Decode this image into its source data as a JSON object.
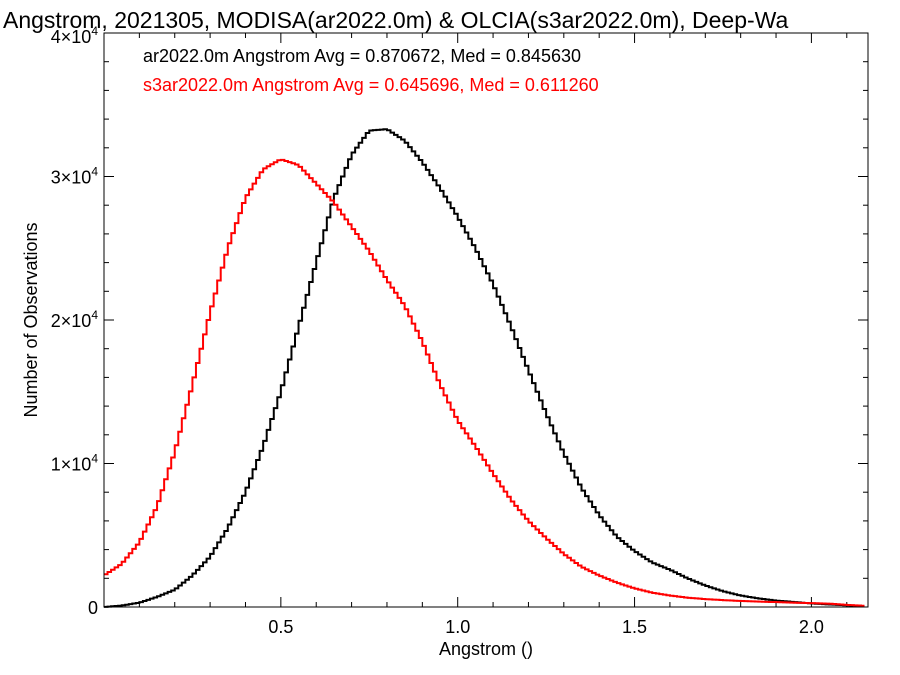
{
  "chart_data": {
    "type": "line",
    "step": true,
    "title": "Angstrom, 2021305, MODISA(ar2022.0m) & OLCIA(s3ar2022.0m), Deep-Wa",
    "xlabel": "Angstrom ()",
    "ylabel": "Number of Observations",
    "xlim": [
      0.0,
      2.16
    ],
    "ylim": [
      0,
      40000
    ],
    "x_ticks": [
      {
        "value": 0.5,
        "label": "0.5"
      },
      {
        "value": 1.0,
        "label": "1.0"
      },
      {
        "value": 1.5,
        "label": "1.5"
      },
      {
        "value": 2.0,
        "label": "2.0"
      }
    ],
    "y_ticks": [
      {
        "value": 0,
        "label": "0",
        "exp": ""
      },
      {
        "value": 10000,
        "label": "1×10",
        "exp": "4"
      },
      {
        "value": 20000,
        "label": "2×10",
        "exp": "4"
      },
      {
        "value": 30000,
        "label": "3×10",
        "exp": "4"
      },
      {
        "value": 40000,
        "label": "4×10",
        "exp": "4"
      }
    ],
    "annotations": [
      {
        "text": "ar2022.0m Angstrom Avg = 0.870672, Med = 0.845630",
        "color": "#000000"
      },
      {
        "text": "s3ar2022.0m Angstrom Avg = 0.645696, Med = 0.611260",
        "color": "#ff0000"
      }
    ],
    "series": [
      {
        "color": "#000000",
        "x": [
          0.0,
          0.05,
          0.1,
          0.15,
          0.2,
          0.25,
          0.3,
          0.35,
          0.4,
          0.45,
          0.5,
          0.55,
          0.6,
          0.65,
          0.7,
          0.75,
          0.8,
          0.85,
          0.9,
          0.95,
          1.0,
          1.05,
          1.1,
          1.15,
          1.2,
          1.25,
          1.3,
          1.35,
          1.4,
          1.45,
          1.5,
          1.55,
          1.6,
          1.65,
          1.7,
          1.75,
          1.8,
          1.85,
          1.9,
          1.95,
          2.0,
          2.05,
          2.1,
          2.15
        ],
        "y": [
          0,
          100,
          300,
          700,
          1200,
          2200,
          3500,
          5500,
          8000,
          11200,
          15000,
          19500,
          24000,
          28500,
          31500,
          33200,
          33300,
          32500,
          31000,
          29200,
          27200,
          25000,
          22500,
          19600,
          16500,
          13500,
          10700,
          8300,
          6400,
          4900,
          3900,
          3100,
          2600,
          2000,
          1500,
          1100,
          800,
          600,
          450,
          350,
          250,
          180,
          120,
          60
        ]
      },
      {
        "color": "#ff0000",
        "x": [
          0.0,
          0.05,
          0.1,
          0.15,
          0.2,
          0.25,
          0.3,
          0.35,
          0.4,
          0.45,
          0.5,
          0.55,
          0.6,
          0.65,
          0.7,
          0.75,
          0.8,
          0.85,
          0.9,
          0.95,
          1.0,
          1.05,
          1.1,
          1.15,
          1.2,
          1.25,
          1.3,
          1.35,
          1.4,
          1.45,
          1.5,
          1.55,
          1.6,
          1.65,
          1.7,
          1.75,
          1.8,
          1.85,
          1.9,
          1.95,
          2.0,
          2.05,
          2.1,
          2.15
        ],
        "y": [
          2200,
          3000,
          4500,
          7000,
          10800,
          15500,
          20500,
          25000,
          28500,
          30500,
          31200,
          30800,
          29500,
          28200,
          26500,
          24800,
          22800,
          21000,
          18500,
          15500,
          13000,
          11200,
          9300,
          7500,
          6000,
          4800,
          3700,
          2800,
          2200,
          1700,
          1300,
          1000,
          800,
          650,
          550,
          480,
          420,
          380,
          340,
          300,
          270,
          230,
          150,
          80
        ]
      }
    ]
  }
}
